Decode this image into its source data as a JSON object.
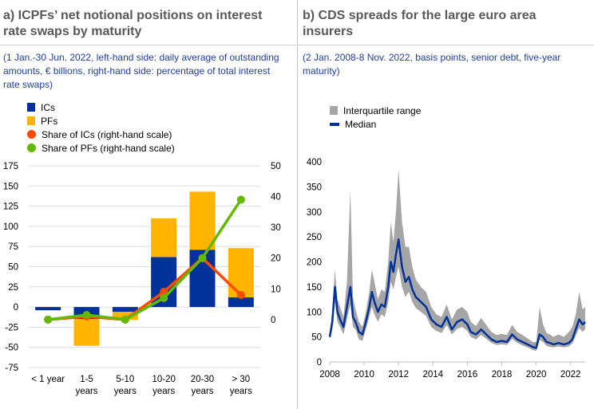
{
  "panel_a": {
    "title_line1": "a) ICPFs’ net notional positions on interest",
    "title_line2": "rate swaps by maturity",
    "subtitle_line1": "(1 Jan.-30 Jun. 2022, left-hand side: daily average of outstanding",
    "subtitle_line2": "amounts, € billions, right-hand side: percentage of total interest",
    "subtitle_line3": "rate swaps)",
    "legend": {
      "ics": "ICs",
      "pfs": "PFs",
      "share_ics": "Share of ICs (right-hand scale)",
      "share_pfs": "Share of PFs (right-hand scale)"
    }
  },
  "panel_b": {
    "title_line1": "b) CDS spreads for the large euro area",
    "title_line2": "insurers",
    "subtitle_line1": "(2 Jan. 2008-8 Nov. 2022, basis points, senior debt, five-year",
    "subtitle_line2": "maturity)",
    "legend": {
      "iqr": "Interquartile range",
      "median": "Median"
    }
  },
  "colors": {
    "ics": "#003299",
    "pfs": "#ffb400",
    "share_ics": "#ff4b00",
    "share_pfs": "#65b800",
    "iqr": "#a6a6a6",
    "median": "#003299",
    "title": "#595959",
    "subtitle": "#1f3f99"
  },
  "chart_data": [
    {
      "type": "bar",
      "stacked": true,
      "categories": [
        [
          "< 1 year"
        ],
        [
          "1-5",
          "years"
        ],
        [
          "5-10",
          "years"
        ],
        [
          "10-20",
          "years"
        ],
        [
          "20-30",
          "years"
        ],
        [
          "> 30",
          "years"
        ]
      ],
      "series": [
        {
          "name": "ICs",
          "values": [
            -4,
            -15,
            -6,
            62,
            71,
            12
          ]
        },
        {
          "name": "PFs",
          "values": [
            0,
            -33,
            -10,
            48,
            72,
            61
          ]
        }
      ],
      "line_series": [
        {
          "name": "Share of ICs (right-hand scale)",
          "values": [
            0,
            1,
            0,
            9,
            20,
            8
          ]
        },
        {
          "name": "Share of PFs (right-hand scale)",
          "values": [
            0,
            1.5,
            0,
            7,
            20,
            39
          ]
        }
      ],
      "y_left": {
        "ticks": [
          175,
          150,
          125,
          100,
          75,
          50,
          25,
          0,
          -25,
          -50,
          -75
        ],
        "ylim": [
          -75,
          175
        ]
      },
      "y_right": {
        "ticks": [
          50,
          40,
          30,
          20,
          10,
          0
        ],
        "ylim": [
          -15.6,
          50
        ]
      },
      "grid": true,
      "legend_position": "top-left"
    },
    {
      "type": "area",
      "x_ticks": [
        "2008",
        "2010",
        "2012",
        "2014",
        "2016",
        "2018",
        "2020",
        "2022"
      ],
      "xlim": [
        2008,
        2022.85
      ],
      "y_ticks": [
        400,
        350,
        300,
        250,
        200,
        150,
        100,
        50,
        0
      ],
      "ylim": [
        0,
        400
      ],
      "grid": false,
      "legend_position": "top-left",
      "series": [
        {
          "name": "Median",
          "x": [
            2008.0,
            2008.15,
            2008.3,
            2008.45,
            2008.6,
            2008.8,
            2009.0,
            2009.2,
            2009.35,
            2009.5,
            2009.7,
            2009.9,
            2010.1,
            2010.3,
            2010.45,
            2010.6,
            2010.8,
            2011.0,
            2011.2,
            2011.4,
            2011.55,
            2011.7,
            2011.85,
            2012.0,
            2012.2,
            2012.4,
            2012.6,
            2012.8,
            2013.0,
            2013.3,
            2013.6,
            2013.9,
            2014.2,
            2014.5,
            2014.8,
            2015.1,
            2015.4,
            2015.7,
            2016.0,
            2016.2,
            2016.5,
            2016.8,
            2017.1,
            2017.4,
            2017.7,
            2018.0,
            2018.3,
            2018.6,
            2018.9,
            2019.2,
            2019.5,
            2019.8,
            2020.0,
            2020.2,
            2020.4,
            2020.6,
            2020.8,
            2021.0,
            2021.3,
            2021.6,
            2021.9,
            2022.1,
            2022.3,
            2022.5,
            2022.7,
            2022.85
          ],
          "y": [
            50,
            80,
            150,
            100,
            85,
            70,
            110,
            150,
            90,
            80,
            60,
            55,
            80,
            110,
            140,
            120,
            100,
            115,
            110,
            150,
            200,
            180,
            215,
            245,
            190,
            160,
            170,
            145,
            130,
            120,
            110,
            85,
            75,
            70,
            90,
            65,
            80,
            85,
            75,
            60,
            55,
            65,
            55,
            45,
            40,
            42,
            40,
            55,
            45,
            40,
            35,
            30,
            28,
            55,
            50,
            40,
            38,
            35,
            38,
            35,
            38,
            45,
            65,
            85,
            75,
            80
          ]
        },
        {
          "name": "Interquartile range",
          "y_low": [
            45,
            65,
            120,
            80,
            70,
            55,
            85,
            115,
            70,
            65,
            45,
            42,
            65,
            90,
            110,
            95,
            80,
            95,
            90,
            120,
            160,
            145,
            170,
            190,
            150,
            130,
            140,
            120,
            108,
            100,
            92,
            70,
            62,
            58,
            74,
            55,
            66,
            70,
            62,
            50,
            45,
            54,
            46,
            38,
            34,
            35,
            34,
            46,
            38,
            33,
            29,
            24,
            22,
            44,
            40,
            32,
            30,
            29,
            31,
            29,
            31,
            37,
            52,
            68,
            60,
            66
          ],
          "y_high": [
            60,
            100,
            185,
            125,
            110,
            90,
            160,
            345,
            130,
            105,
            80,
            70,
            100,
            140,
            185,
            160,
            125,
            145,
            140,
            200,
            280,
            240,
            300,
            385,
            280,
            230,
            230,
            190,
            165,
            150,
            140,
            110,
            95,
            90,
            115,
            85,
            105,
            110,
            100,
            80,
            72,
            88,
            74,
            60,
            54,
            56,
            54,
            74,
            60,
            54,
            47,
            40,
            40,
            110,
            75,
            58,
            55,
            50,
            55,
            50,
            60,
            70,
            95,
            140,
            105,
            110
          ]
        }
      ]
    }
  ]
}
